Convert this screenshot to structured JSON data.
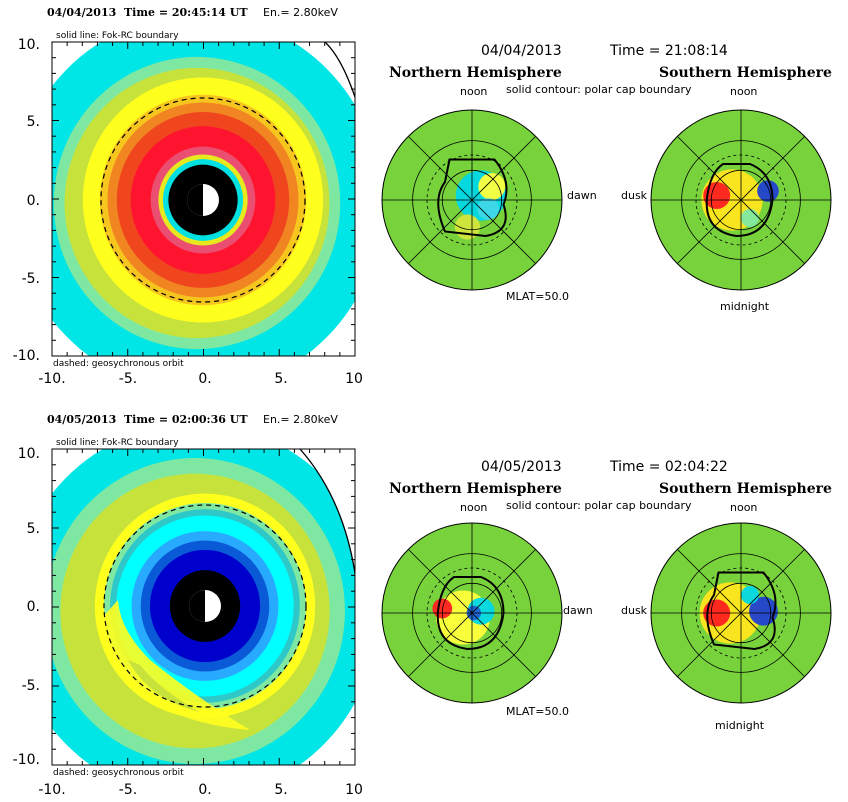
{
  "chart_data": [
    {
      "type": "heatmap",
      "panel": "ring-current-equatorial",
      "title_date": "04/04/2013",
      "title_time": "Time = 20:45:14 UT",
      "title_energy": "En.= 2.80keV",
      "note_top": "solid line: Fok-RC boundary",
      "note_bottom": "dashed: geosychronous orbit",
      "xlim": [
        -10,
        10
      ],
      "ylim": [
        -10,
        10
      ],
      "x_ticks": [
        "-10.",
        "-5.",
        "0.",
        "5.",
        "10"
      ],
      "y_ticks": [
        "10.",
        "5.",
        "0.",
        "-5.",
        "-10."
      ],
      "geosync_radius": 6.6,
      "rings": [
        {
          "r": 12.0,
          "color": "#00e5e5"
        },
        {
          "r": 9.3,
          "color": "#7ee8a2"
        },
        {
          "r": 8.6,
          "color": "#c8e23c"
        },
        {
          "r": 7.8,
          "color": "#ffff1e"
        },
        {
          "r": 6.7,
          "color": "#f6c51e"
        },
        {
          "r": 6.2,
          "color": "#f08522"
        },
        {
          "r": 5.6,
          "color": "#f0461e"
        },
        {
          "r": 4.7,
          "color": "#ff1430"
        },
        {
          "r": 3.4,
          "color": "#ea4f72"
        },
        {
          "r": 2.9,
          "color": "#e8e81e"
        },
        {
          "r": 2.6,
          "color": "#00e0e0"
        },
        {
          "r": 2.25,
          "color": "#000000"
        }
      ]
    },
    {
      "type": "heatmap",
      "panel": "ionosphere-polar",
      "title_date": "04/04/2013",
      "title_time": "Time = 21:08:14",
      "north_label": "Northern Hemisphere",
      "south_label": "Southern Hemisphere",
      "contour_note": "solid contour: polar cap boundary",
      "noon": "noon",
      "dawn": "dawn",
      "dusk": "dusk",
      "midnight": "midnight",
      "mlat": "MLAT=50.0",
      "north_blobs": [
        {
          "x": 0.1,
          "y": -0.05,
          "r": 0.28,
          "color": "#00d8e8"
        },
        {
          "x": 0.22,
          "y": -0.15,
          "r": 0.15,
          "color": "#ffff3c"
        },
        {
          "x": -0.05,
          "y": 0.3,
          "r": 0.14,
          "color": "#d2e63c"
        },
        {
          "x": 0.18,
          "y": 0.1,
          "r": 0.12,
          "color": "#40d8e8"
        }
      ],
      "south_blobs": [
        {
          "x": -0.1,
          "y": 0.0,
          "r": 0.34,
          "color": "#ffe61e"
        },
        {
          "x": -0.27,
          "y": -0.05,
          "r": 0.15,
          "color": "#ff2020"
        },
        {
          "x": 0.3,
          "y": -0.1,
          "r": 0.12,
          "color": "#2040d0"
        },
        {
          "x": 0.1,
          "y": 0.2,
          "r": 0.1,
          "color": "#7ee8a2"
        }
      ]
    },
    {
      "type": "heatmap",
      "panel": "ring-current-equatorial",
      "title_date": "04/05/2013",
      "title_time": "Time = 02:00:36 UT",
      "title_energy": "En.= 2.80keV",
      "note_top": "solid line: Fok-RC boundary",
      "note_bottom": "dashed: geosychronous orbit",
      "xlim": [
        -10,
        10
      ],
      "ylim": [
        -10,
        10
      ],
      "x_ticks": [
        "-10.",
        "-5.",
        "0.",
        "5.",
        "10"
      ],
      "y_ticks": [
        "10.",
        "5.",
        "0.",
        "-5.",
        "-10."
      ],
      "geosync_radius": 6.6,
      "rings": [
        {
          "r": 12.0,
          "color": "#00e5e5"
        },
        {
          "r": 9.8,
          "color": "#7ee8a2"
        },
        {
          "r": 8.8,
          "color": "#c8e23c"
        },
        {
          "r": 7.2,
          "color": "#ffff1e"
        },
        {
          "r": 6.6,
          "color": "#7ee8a2"
        },
        {
          "r": 6.2,
          "color": "#2ec8c8"
        },
        {
          "r": 5.8,
          "color": "#00ffff"
        },
        {
          "r": 4.8,
          "color": "#28aaff"
        },
        {
          "r": 4.2,
          "color": "#0a5ad8"
        },
        {
          "r": 3.6,
          "color": "#0000cc"
        },
        {
          "r": 2.3,
          "color": "#000000"
        }
      ]
    },
    {
      "type": "heatmap",
      "panel": "ionosphere-polar",
      "title_date": "04/05/2013",
      "title_time": "Time = 02:04:22",
      "north_label": "Northern Hemisphere",
      "south_label": "Southern Hemisphere",
      "contour_note": "solid contour: polar cap boundary",
      "noon": "noon",
      "dawn": "dawn",
      "dusk": "dusk",
      "midnight": "midnight",
      "mlat": "MLAT=50.0",
      "north_blobs": [
        {
          "x": -0.1,
          "y": 0.05,
          "r": 0.3,
          "color": "#ffff3c"
        },
        {
          "x": 0.1,
          "y": -0.02,
          "r": 0.15,
          "color": "#00d8e8"
        },
        {
          "x": -0.33,
          "y": -0.05,
          "r": 0.11,
          "color": "#ff2020"
        },
        {
          "x": 0.02,
          "y": 0.0,
          "r": 0.08,
          "color": "#2060d0"
        }
      ],
      "south_blobs": [
        {
          "x": -0.12,
          "y": 0.0,
          "r": 0.34,
          "color": "#ffe61e"
        },
        {
          "x": -0.27,
          "y": 0.0,
          "r": 0.15,
          "color": "#ff2020"
        },
        {
          "x": 0.25,
          "y": -0.02,
          "r": 0.16,
          "color": "#2040d0"
        },
        {
          "x": 0.1,
          "y": -0.2,
          "r": 0.1,
          "color": "#00d8e8"
        }
      ]
    }
  ]
}
